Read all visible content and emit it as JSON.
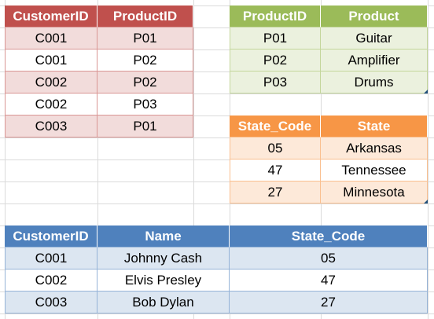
{
  "customer_products": {
    "headers": [
      "CustomerID",
      "ProductID"
    ],
    "rows": [
      [
        "C001",
        "P01"
      ],
      [
        "C001",
        "P02"
      ],
      [
        "C002",
        "P02"
      ],
      [
        "C002",
        "P03"
      ],
      [
        "C003",
        "P01"
      ]
    ],
    "header_color": "#c0504d",
    "band_color": "#f2dcdb"
  },
  "products": {
    "headers": [
      "ProductID",
      "Product"
    ],
    "rows": [
      [
        "P01",
        "Guitar"
      ],
      [
        "P02",
        "Amplifier"
      ],
      [
        "P03",
        "Drums"
      ]
    ],
    "header_color": "#9bbb59",
    "band_color": "#ebf1de"
  },
  "states": {
    "headers": [
      "State_Code",
      "State"
    ],
    "rows": [
      [
        "05",
        "Arkansas"
      ],
      [
        "47",
        "Tennessee"
      ],
      [
        "27",
        "Minnesota"
      ]
    ],
    "header_color": "#f79646",
    "band_color": "#fde9d9"
  },
  "customers": {
    "headers": [
      "CustomerID",
      "Name",
      "State_Code"
    ],
    "rows": [
      [
        "C001",
        "Johnny Cash",
        "05"
      ],
      [
        "C002",
        "Elvis Presley",
        "47"
      ],
      [
        "C003",
        "Bob Dylan",
        "27"
      ]
    ],
    "header_color": "#4f81bd",
    "band_color": "#dce6f1"
  }
}
